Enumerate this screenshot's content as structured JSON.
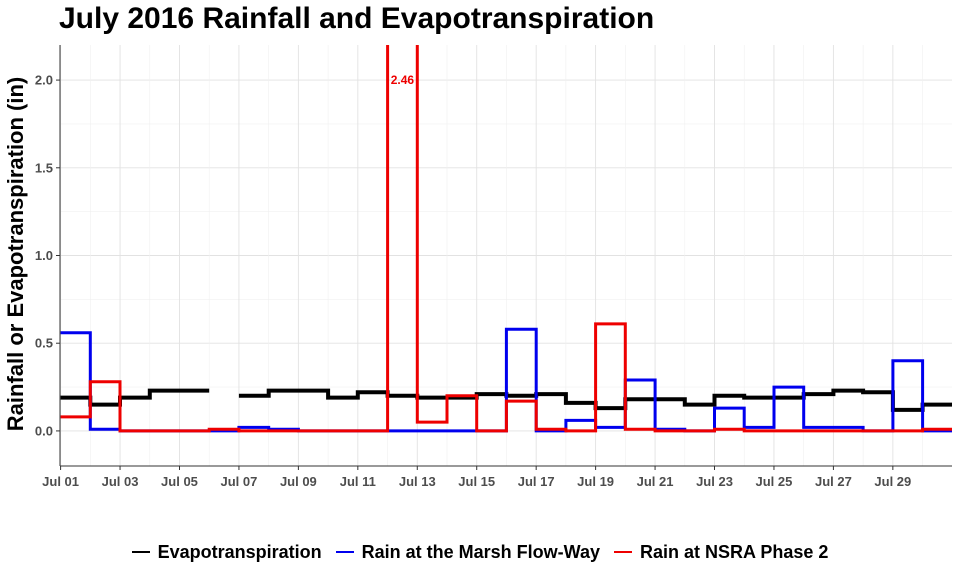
{
  "chart_data": {
    "type": "line",
    "step": true,
    "title": "July 2016 Rainfall and Evapotranspiration",
    "xlabel": "",
    "ylabel": "Rainfall or Evapotranspiration (in)",
    "x_start": "Jul 01",
    "x_end": "Jul 30",
    "x_tick_labels": [
      "Jul 01",
      "Jul 03",
      "Jul 05",
      "Jul 07",
      "Jul 09",
      "Jul 11",
      "Jul 13",
      "Jul 15",
      "Jul 17",
      "Jul 19",
      "Jul 21",
      "Jul 23",
      "Jul 25",
      "Jul 27",
      "Jul 29"
    ],
    "ylim": [
      -0.2,
      2.2
    ],
    "y_ticks": [
      0.0,
      0.5,
      1.0,
      1.5,
      2.0
    ],
    "y_tick_labels": [
      "0.0",
      "0.5",
      "1.0",
      "1.5",
      "2.0"
    ],
    "grid": true,
    "legend_position": "bottom",
    "dates": [
      "Jul 01",
      "Jul 02",
      "Jul 03",
      "Jul 04",
      "Jul 05",
      "Jul 06",
      "Jul 07",
      "Jul 08",
      "Jul 09",
      "Jul 10",
      "Jul 11",
      "Jul 12",
      "Jul 13",
      "Jul 14",
      "Jul 15",
      "Jul 16",
      "Jul 17",
      "Jul 18",
      "Jul 19",
      "Jul 20",
      "Jul 21",
      "Jul 22",
      "Jul 23",
      "Jul 24",
      "Jul 25",
      "Jul 26",
      "Jul 27",
      "Jul 28",
      "Jul 29",
      "Jul 30"
    ],
    "series": [
      {
        "name": "Evapotranspiration",
        "color": "#000000",
        "values": [
          0.19,
          0.15,
          0.19,
          0.23,
          0.23,
          null,
          0.2,
          0.23,
          0.23,
          0.19,
          0.22,
          0.2,
          0.19,
          0.19,
          0.21,
          0.2,
          0.21,
          0.16,
          0.13,
          0.18,
          0.18,
          0.15,
          0.2,
          0.19,
          0.19,
          0.21,
          0.23,
          0.22,
          0.12,
          0.15
        ]
      },
      {
        "name": "Rain at the Marsh Flow-Way",
        "color": "#0000ee",
        "values": [
          0.56,
          0.01,
          0.0,
          0.0,
          0.0,
          0.0,
          0.02,
          0.01,
          0.0,
          0.0,
          0.0,
          0.0,
          0.0,
          0.0,
          0.0,
          0.58,
          0.0,
          0.06,
          0.02,
          0.29,
          0.01,
          0.0,
          0.13,
          0.02,
          0.25,
          0.02,
          0.02,
          0.0,
          0.4,
          0.0
        ]
      },
      {
        "name": "Rain at NSRA Phase 2",
        "color": "#ee0000",
        "values": [
          0.08,
          0.28,
          0.0,
          0.0,
          0.0,
          0.01,
          0.0,
          0.0,
          0.0,
          0.0,
          0.0,
          2.46,
          0.05,
          0.2,
          0.0,
          0.17,
          0.01,
          0.0,
          0.61,
          0.01,
          0.0,
          0.0,
          0.01,
          0.0,
          0.0,
          0.0,
          0.0,
          0.0,
          0.0,
          0.01
        ]
      }
    ],
    "annotations": [
      {
        "text": "2.46",
        "series": "Rain at NSRA Phase 2",
        "date": "Jul 12",
        "y": 2.0,
        "color": "#ee0000"
      }
    ]
  }
}
